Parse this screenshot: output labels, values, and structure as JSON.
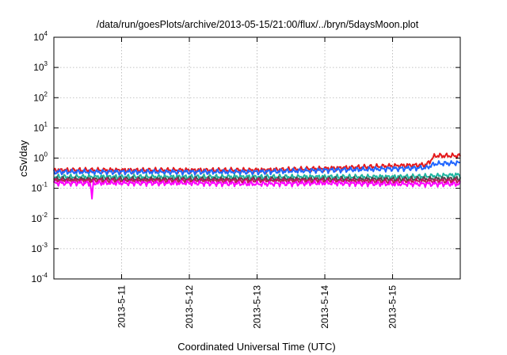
{
  "chart_data": {
    "type": "line",
    "title": "/data/run/goesPlots/archive/2013-05-15/21:00/flux/../bryn/5daysMoon.plot",
    "xlabel": "Coordinated Universal Time (UTC)",
    "ylabel": "cSv/day",
    "x_range": [
      "2013-05-10T00:00",
      "2013-05-15T23:59"
    ],
    "x_ticks": [
      "2013-5-11",
      "2013-5-12",
      "2013-5-13",
      "2013-5-14",
      "2013-5-15"
    ],
    "y_scale": "log",
    "ylim": [
      0.0001,
      10000
    ],
    "y_ticks": [
      {
        "base": "10",
        "exp": "-4"
      },
      {
        "base": "10",
        "exp": "-3"
      },
      {
        "base": "10",
        "exp": "-2"
      },
      {
        "base": "10",
        "exp": "-1"
      },
      {
        "base": "10",
        "exp": "0"
      },
      {
        "base": "10",
        "exp": "1"
      },
      {
        "base": "10",
        "exp": "2"
      },
      {
        "base": "10",
        "exp": "3"
      },
      {
        "base": "10",
        "exp": "4"
      }
    ],
    "grid": true,
    "legend": "none",
    "series": [
      {
        "color": "#e41a1c",
        "x": [
          "2013-05-10T00:00",
          "2013-05-11T00:00",
          "2013-05-12T00:00",
          "2013-05-13T00:00",
          "2013-05-14T00:00",
          "2013-05-14T12:00",
          "2013-05-15T00:00",
          "2013-05-15T12:00",
          "2013-05-15T15:00",
          "2013-05-15T23:59"
        ],
        "y": [
          0.4,
          0.4,
          0.4,
          0.4,
          0.45,
          0.5,
          0.55,
          0.6,
          1.2,
          1.2
        ]
      },
      {
        "color": "#2166ff",
        "x": [
          "2013-05-10T00:00",
          "2013-05-11T00:00",
          "2013-05-12T00:00",
          "2013-05-13T00:00",
          "2013-05-14T00:00",
          "2013-05-14T12:00",
          "2013-05-15T00:00",
          "2013-05-15T12:00",
          "2013-05-15T15:00",
          "2013-05-15T23:59"
        ],
        "y": [
          0.35,
          0.35,
          0.35,
          0.35,
          0.4,
          0.42,
          0.45,
          0.48,
          0.65,
          0.7
        ]
      },
      {
        "color": "#1fb5a0",
        "x": [
          "2013-05-10T00:00",
          "2013-05-12T00:00",
          "2013-05-14T00:00",
          "2013-05-15T00:00",
          "2013-05-15T12:00",
          "2013-05-15T23:59"
        ],
        "y": [
          0.24,
          0.24,
          0.24,
          0.24,
          0.25,
          0.28
        ]
      },
      {
        "color": "#4d4d4d",
        "x": [
          "2013-05-10T00:00",
          "2013-05-12T00:00",
          "2013-05-14T00:00",
          "2013-05-15T00:00",
          "2013-05-15T23:59"
        ],
        "y": [
          0.2,
          0.2,
          0.2,
          0.2,
          0.21
        ]
      },
      {
        "color": "#c2185b",
        "x": [
          "2013-05-10T00:00",
          "2013-05-12T00:00",
          "2013-05-14T00:00",
          "2013-05-15T00:00",
          "2013-05-15T23:59"
        ],
        "y": [
          0.18,
          0.18,
          0.18,
          0.17,
          0.18
        ]
      },
      {
        "color": "#ff00ff",
        "x": [
          "2013-05-10T00:00",
          "2013-05-10T13:00",
          "2013-05-10T13:30",
          "2013-05-10T14:00",
          "2013-05-12T00:00",
          "2013-05-13T00:00",
          "2013-05-14T00:00",
          "2013-05-15T00:00",
          "2013-05-15T23:59"
        ],
        "y": [
          0.15,
          0.15,
          0.045,
          0.15,
          0.15,
          0.14,
          0.15,
          0.14,
          0.14
        ]
      }
    ]
  }
}
